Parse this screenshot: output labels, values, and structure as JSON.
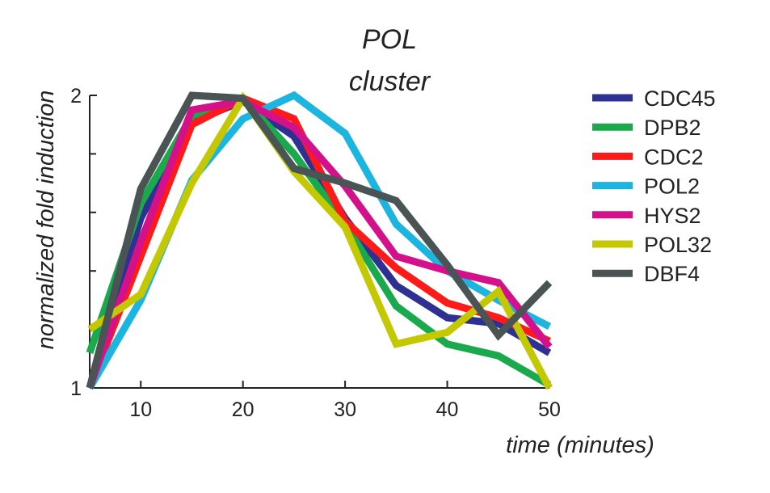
{
  "chart_data": {
    "type": "line",
    "title_line1": "POL",
    "title_line2": "cluster",
    "xlabel": "time (minutes)",
    "ylabel": "normalized fold  induction",
    "x": [
      5,
      10,
      15,
      20,
      25,
      30,
      35,
      40,
      45,
      50
    ],
    "xlim": [
      5,
      50
    ],
    "ylim": [
      1,
      2
    ],
    "xticks": [
      10,
      20,
      30,
      40,
      50
    ],
    "yticks": [
      1,
      2
    ],
    "y_minor_ticks": [
      1.2,
      1.4,
      1.6,
      1.8
    ],
    "grid": false,
    "legend_position": "right",
    "series": [
      {
        "name": "CDC45",
        "color": "#2e3192",
        "values": [
          1.0,
          1.58,
          1.91,
          1.98,
          1.86,
          1.58,
          1.35,
          1.24,
          1.22,
          1.12
        ]
      },
      {
        "name": "DPB2",
        "color": "#1aa94c",
        "values": [
          1.12,
          1.63,
          1.93,
          1.99,
          1.8,
          1.56,
          1.28,
          1.15,
          1.11,
          1.01
        ]
      },
      {
        "name": "CDC2",
        "color": "#ff1a1a",
        "values": [
          1.0,
          1.45,
          1.9,
          1.99,
          1.92,
          1.57,
          1.41,
          1.29,
          1.24,
          1.16
        ]
      },
      {
        "name": "POL2",
        "color": "#1cb5e0",
        "values": [
          1.0,
          1.3,
          1.71,
          1.92,
          2.0,
          1.87,
          1.56,
          1.4,
          1.3,
          1.21
        ]
      },
      {
        "name": "HYS2",
        "color": "#d4108b",
        "values": [
          1.0,
          1.5,
          1.95,
          1.98,
          1.89,
          1.69,
          1.45,
          1.4,
          1.36,
          1.14
        ]
      },
      {
        "name": "POL32",
        "color": "#c4c800",
        "values": [
          1.2,
          1.32,
          1.7,
          1.99,
          1.74,
          1.55,
          1.15,
          1.19,
          1.33,
          1.0
        ]
      },
      {
        "name": "DBF4",
        "color": "#4a5454",
        "values": [
          1.0,
          1.68,
          2.0,
          1.99,
          1.75,
          1.7,
          1.64,
          1.42,
          1.18,
          1.36
        ]
      }
    ]
  }
}
